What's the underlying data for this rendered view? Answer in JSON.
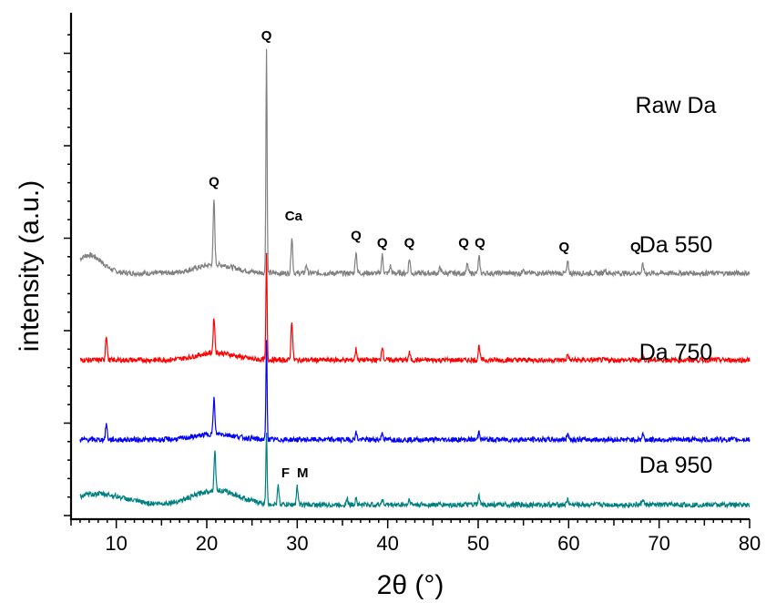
{
  "chart_data": {
    "type": "line",
    "title": "",
    "xlabel": "2θ (°)",
    "ylabel": "intensity (a.u.)",
    "xlim": [
      5,
      80
    ],
    "xticks": [
      10,
      20,
      30,
      40,
      50,
      60,
      70,
      80
    ],
    "xtick_labels": [
      "10",
      "20",
      "30",
      "40",
      "50",
      "60",
      "70",
      "80"
    ],
    "y_tick_labels_shown": false,
    "grid": false,
    "series": [
      {
        "name": "Raw Da",
        "color": "#808080",
        "baseline": 3.2,
        "amorphous_humps": [
          [
            7,
            0.25,
            2.0
          ],
          [
            21,
            0.12,
            3.0
          ]
        ],
        "peaks": [
          [
            20.8,
            0.9
          ],
          [
            26.6,
            3.1
          ],
          [
            29.4,
            0.5
          ],
          [
            31.0,
            0.12
          ],
          [
            36.5,
            0.3
          ],
          [
            39.4,
            0.25
          ],
          [
            40.3,
            0.1
          ],
          [
            42.4,
            0.2
          ],
          [
            45.8,
            0.08
          ],
          [
            48.8,
            0.12
          ],
          [
            50.1,
            0.22
          ],
          [
            55.0,
            0.08
          ],
          [
            59.9,
            0.15
          ],
          [
            64.0,
            0.06
          ],
          [
            68.2,
            0.12
          ]
        ]
      },
      {
        "name": "Da 550",
        "color": "#ff0000",
        "baseline": 2.0,
        "amorphous_humps": [
          [
            21,
            0.1,
            3.0
          ]
        ],
        "peaks": [
          [
            8.9,
            0.35
          ],
          [
            20.8,
            0.5
          ],
          [
            26.6,
            1.45
          ],
          [
            29.4,
            0.55
          ],
          [
            36.5,
            0.15
          ],
          [
            39.4,
            0.2
          ],
          [
            42.4,
            0.1
          ],
          [
            50.1,
            0.2
          ],
          [
            59.9,
            0.08
          ],
          [
            68.2,
            0.08
          ]
        ]
      },
      {
        "name": "Da 750",
        "color": "#0000ff",
        "baseline": 0.9,
        "amorphous_humps": [
          [
            21,
            0.08,
            3.0
          ]
        ],
        "peaks": [
          [
            8.9,
            0.22
          ],
          [
            20.8,
            0.5
          ],
          [
            26.6,
            1.35
          ],
          [
            36.5,
            0.1
          ],
          [
            39.4,
            0.1
          ],
          [
            50.1,
            0.12
          ],
          [
            59.9,
            0.1
          ],
          [
            68.2,
            0.08
          ]
        ]
      },
      {
        "name": "Da 950",
        "color": "#008080",
        "baseline": 0.0,
        "amorphous_humps": [
          [
            8,
            0.15,
            4.0
          ],
          [
            21,
            0.2,
            3.5
          ]
        ],
        "peaks": [
          [
            20.9,
            0.55
          ],
          [
            26.6,
            1.0
          ],
          [
            27.9,
            0.25
          ],
          [
            30.0,
            0.25
          ],
          [
            35.5,
            0.08
          ],
          [
            36.5,
            0.1
          ],
          [
            39.4,
            0.08
          ],
          [
            42.4,
            0.08
          ],
          [
            50.1,
            0.12
          ],
          [
            59.9,
            0.08
          ],
          [
            68.2,
            0.08
          ]
        ]
      }
    ],
    "annotations": [
      {
        "text": "Q",
        "x": 26.6,
        "series": "Raw Da",
        "level": 6.42
      },
      {
        "text": "Q",
        "x": 20.8,
        "series": "Raw Da",
        "level": 4.4
      },
      {
        "text": "Ca",
        "x": 29.6,
        "series": "Raw Da",
        "level": 3.93
      },
      {
        "text": "Q",
        "x": 36.5,
        "series": "Raw Da",
        "level": 3.66
      },
      {
        "text": "Q",
        "x": 39.4,
        "series": "Raw Da",
        "level": 3.56
      },
      {
        "text": "Q",
        "x": 42.4,
        "series": "Raw Da",
        "level": 3.56
      },
      {
        "text": "Q",
        "x": 48.4,
        "series": "Raw Da",
        "level": 3.56
      },
      {
        "text": "Q",
        "x": 50.2,
        "series": "Raw Da",
        "level": 3.56
      },
      {
        "text": "Q",
        "x": 59.5,
        "series": "Raw Da",
        "level": 3.5
      },
      {
        "text": "Q",
        "x": 67.4,
        "series": "Raw Da",
        "level": 3.5
      },
      {
        "text": "F",
        "x": 28.7,
        "series": "Da 950",
        "level": 0.38
      },
      {
        "text": "M",
        "x": 30.6,
        "series": "Da 950",
        "level": 0.38
      }
    ]
  }
}
